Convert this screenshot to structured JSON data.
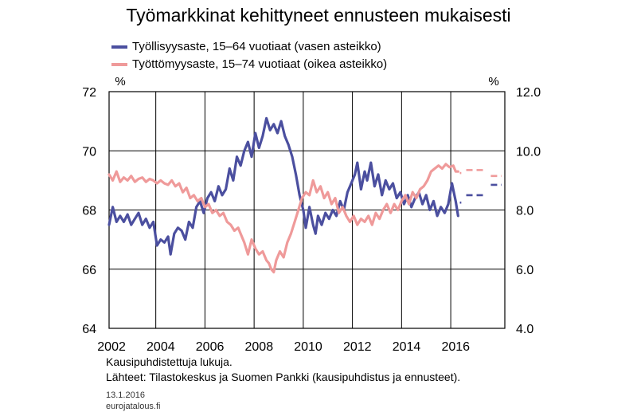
{
  "chart_data": {
    "type": "line",
    "title": "Työmarkkinat kehittyneet ennusteen mukaisesti",
    "left_axis": {
      "unit": "%",
      "ylim": [
        64,
        72
      ],
      "ticks": [
        "64",
        "66",
        "68",
        "70",
        "72"
      ]
    },
    "right_axis": {
      "unit": "%",
      "ylim": [
        4.0,
        12.0
      ],
      "ticks": [
        "4.0",
        "6.0",
        "8.0",
        "10.0",
        "12.0"
      ]
    },
    "x_ticks": [
      "2002",
      "2004",
      "2006",
      "2008",
      "2010",
      "2012",
      "2014",
      "2016"
    ],
    "xlim": [
      2001.6,
      2017.7
    ],
    "series": [
      {
        "name": "Työllisyysaste, 15–64 vuotiaat (vasen asteikko)",
        "axis": "left",
        "color": "#4b4f9f",
        "points": [
          [
            2001.6,
            67.5
          ],
          [
            2001.75,
            68.1
          ],
          [
            2001.9,
            67.6
          ],
          [
            2002.05,
            67.8
          ],
          [
            2002.2,
            67.6
          ],
          [
            2002.35,
            67.85
          ],
          [
            2002.5,
            67.5
          ],
          [
            2002.65,
            67.7
          ],
          [
            2002.8,
            67.9
          ],
          [
            2002.95,
            67.5
          ],
          [
            2003.1,
            67.7
          ],
          [
            2003.25,
            67.4
          ],
          [
            2003.4,
            67.6
          ],
          [
            2003.55,
            66.8
          ],
          [
            2003.7,
            67.0
          ],
          [
            2003.85,
            66.9
          ],
          [
            2004.0,
            67.1
          ],
          [
            2004.1,
            66.5
          ],
          [
            2004.25,
            67.2
          ],
          [
            2004.4,
            67.4
          ],
          [
            2004.55,
            67.3
          ],
          [
            2004.7,
            67.0
          ],
          [
            2004.85,
            67.6
          ],
          [
            2005.0,
            67.4
          ],
          [
            2005.15,
            68.1
          ],
          [
            2005.3,
            68.3
          ],
          [
            2005.45,
            67.9
          ],
          [
            2005.6,
            68.4
          ],
          [
            2005.75,
            68.6
          ],
          [
            2005.9,
            68.3
          ],
          [
            2006.05,
            68.8
          ],
          [
            2006.2,
            68.5
          ],
          [
            2006.35,
            68.7
          ],
          [
            2006.5,
            69.4
          ],
          [
            2006.65,
            69.0
          ],
          [
            2006.8,
            69.8
          ],
          [
            2006.95,
            69.5
          ],
          [
            2007.1,
            70.0
          ],
          [
            2007.25,
            70.3
          ],
          [
            2007.4,
            69.8
          ],
          [
            2007.55,
            70.6
          ],
          [
            2007.7,
            70.1
          ],
          [
            2007.85,
            70.5
          ],
          [
            2008.0,
            71.1
          ],
          [
            2008.15,
            70.7
          ],
          [
            2008.3,
            70.9
          ],
          [
            2008.45,
            70.6
          ],
          [
            2008.6,
            71.0
          ],
          [
            2008.75,
            70.5
          ],
          [
            2008.9,
            70.2
          ],
          [
            2009.05,
            69.8
          ],
          [
            2009.2,
            69.2
          ],
          [
            2009.35,
            68.5
          ],
          [
            2009.5,
            68.0
          ],
          [
            2009.6,
            67.4
          ],
          [
            2009.75,
            68.1
          ],
          [
            2009.9,
            67.5
          ],
          [
            2010.0,
            67.2
          ],
          [
            2010.1,
            67.8
          ],
          [
            2010.25,
            67.5
          ],
          [
            2010.4,
            67.9
          ],
          [
            2010.55,
            67.7
          ],
          [
            2010.7,
            68.0
          ],
          [
            2010.85,
            67.8
          ],
          [
            2011.0,
            68.3
          ],
          [
            2011.15,
            68.0
          ],
          [
            2011.3,
            68.6
          ],
          [
            2011.45,
            68.9
          ],
          [
            2011.6,
            69.2
          ],
          [
            2011.7,
            69.6
          ],
          [
            2011.85,
            68.7
          ],
          [
            2012.0,
            69.3
          ],
          [
            2012.1,
            69.0
          ],
          [
            2012.25,
            69.6
          ],
          [
            2012.4,
            68.8
          ],
          [
            2012.55,
            69.2
          ],
          [
            2012.7,
            68.5
          ],
          [
            2012.85,
            69.0
          ],
          [
            2013.0,
            68.7
          ],
          [
            2013.15,
            68.9
          ],
          [
            2013.3,
            68.4
          ],
          [
            2013.45,
            68.6
          ],
          [
            2013.6,
            68.2
          ],
          [
            2013.75,
            68.5
          ],
          [
            2013.9,
            68.1
          ],
          [
            2014.05,
            68.4
          ],
          [
            2014.2,
            68.6
          ],
          [
            2014.35,
            68.2
          ],
          [
            2014.5,
            68.5
          ],
          [
            2014.65,
            68.0
          ],
          [
            2014.8,
            68.3
          ],
          [
            2014.95,
            67.8
          ],
          [
            2015.1,
            68.1
          ],
          [
            2015.25,
            67.9
          ],
          [
            2015.4,
            68.2
          ],
          [
            2015.55,
            68.9
          ],
          [
            2015.7,
            68.3
          ],
          [
            2015.8,
            67.8
          ]
        ],
        "forecast": [
          [
            2015.8,
            68.25
          ],
          [
            2016.0,
            68.25
          ],
          [
            2016.0,
            68.5
          ],
          [
            2017.0,
            68.5
          ],
          [
            2017.0,
            68.85
          ],
          [
            2017.7,
            68.85
          ]
        ]
      },
      {
        "name": "Työttömyysaste, 15–74 vuotiaat (oikea asteikko)",
        "axis": "right",
        "color": "#ef9a9a",
        "points": [
          [
            2001.6,
            9.2
          ],
          [
            2001.75,
            9.0
          ],
          [
            2001.9,
            9.3
          ],
          [
            2002.05,
            8.95
          ],
          [
            2002.2,
            9.1
          ],
          [
            2002.35,
            9.0
          ],
          [
            2002.5,
            9.15
          ],
          [
            2002.65,
            8.95
          ],
          [
            2002.8,
            9.05
          ],
          [
            2002.95,
            9.1
          ],
          [
            2003.1,
            8.95
          ],
          [
            2003.25,
            9.05
          ],
          [
            2003.4,
            9.0
          ],
          [
            2003.55,
            8.9
          ],
          [
            2003.7,
            9.0
          ],
          [
            2003.85,
            8.9
          ],
          [
            2004.0,
            8.85
          ],
          [
            2004.15,
            9.0
          ],
          [
            2004.3,
            8.8
          ],
          [
            2004.45,
            8.9
          ],
          [
            2004.6,
            8.6
          ],
          [
            2004.75,
            8.75
          ],
          [
            2004.9,
            8.4
          ],
          [
            2005.05,
            8.5
          ],
          [
            2005.2,
            8.3
          ],
          [
            2005.35,
            8.4
          ],
          [
            2005.5,
            8.1
          ],
          [
            2005.65,
            8.2
          ],
          [
            2005.8,
            7.9
          ],
          [
            2005.95,
            8.0
          ],
          [
            2006.1,
            7.8
          ],
          [
            2006.25,
            7.9
          ],
          [
            2006.4,
            7.6
          ],
          [
            2006.55,
            7.5
          ],
          [
            2006.7,
            7.3
          ],
          [
            2006.85,
            7.4
          ],
          [
            2007.0,
            7.1
          ],
          [
            2007.1,
            6.9
          ],
          [
            2007.25,
            6.5
          ],
          [
            2007.4,
            7.0
          ],
          [
            2007.55,
            6.7
          ],
          [
            2007.7,
            6.5
          ],
          [
            2007.85,
            6.6
          ],
          [
            2008.0,
            6.3
          ],
          [
            2008.1,
            6.2
          ],
          [
            2008.2,
            6.0
          ],
          [
            2008.3,
            5.9
          ],
          [
            2008.4,
            6.3
          ],
          [
            2008.55,
            6.6
          ],
          [
            2008.7,
            6.4
          ],
          [
            2008.85,
            6.9
          ],
          [
            2009.0,
            7.2
          ],
          [
            2009.15,
            7.6
          ],
          [
            2009.3,
            8.0
          ],
          [
            2009.45,
            8.4
          ],
          [
            2009.6,
            8.6
          ],
          [
            2009.75,
            8.5
          ],
          [
            2009.9,
            9.0
          ],
          [
            2010.05,
            8.6
          ],
          [
            2010.2,
            8.8
          ],
          [
            2010.35,
            8.4
          ],
          [
            2010.5,
            8.6
          ],
          [
            2010.65,
            8.2
          ],
          [
            2010.8,
            8.4
          ],
          [
            2010.95,
            7.9
          ],
          [
            2011.1,
            8.1
          ],
          [
            2011.25,
            7.8
          ],
          [
            2011.4,
            7.6
          ],
          [
            2011.55,
            7.8
          ],
          [
            2011.7,
            7.5
          ],
          [
            2011.85,
            7.7
          ],
          [
            2012.0,
            7.6
          ],
          [
            2012.15,
            7.8
          ],
          [
            2012.3,
            7.5
          ],
          [
            2012.45,
            7.9
          ],
          [
            2012.6,
            7.7
          ],
          [
            2012.75,
            8.0
          ],
          [
            2012.9,
            8.2
          ],
          [
            2013.05,
            7.9
          ],
          [
            2013.2,
            8.2
          ],
          [
            2013.35,
            8.0
          ],
          [
            2013.5,
            8.3
          ],
          [
            2013.65,
            8.5
          ],
          [
            2013.8,
            8.2
          ],
          [
            2013.95,
            8.6
          ],
          [
            2014.1,
            8.4
          ],
          [
            2014.25,
            8.7
          ],
          [
            2014.4,
            8.8
          ],
          [
            2014.55,
            9.0
          ],
          [
            2014.7,
            9.3
          ],
          [
            2014.85,
            9.4
          ],
          [
            2015.0,
            9.5
          ],
          [
            2015.15,
            9.4
          ],
          [
            2015.3,
            9.55
          ],
          [
            2015.45,
            9.45
          ],
          [
            2015.6,
            9.5
          ],
          [
            2015.7,
            9.3
          ],
          [
            2015.8,
            9.3
          ]
        ],
        "forecast": [
          [
            2015.8,
            9.25
          ],
          [
            2016.0,
            9.25
          ],
          [
            2016.0,
            9.35
          ],
          [
            2017.0,
            9.35
          ],
          [
            2017.0,
            9.15
          ],
          [
            2017.7,
            9.15
          ]
        ]
      }
    ],
    "grid": true
  },
  "notes": {
    "line1": "Kausipuhdistettuja lukuja.",
    "line2": "Lähteet:  Tilastokeskus ja Suomen Pankki (kausipuhdistus ja ennusteet)."
  },
  "meta": {
    "date": "13.1.2016",
    "site": "eurojatalous.fi"
  }
}
